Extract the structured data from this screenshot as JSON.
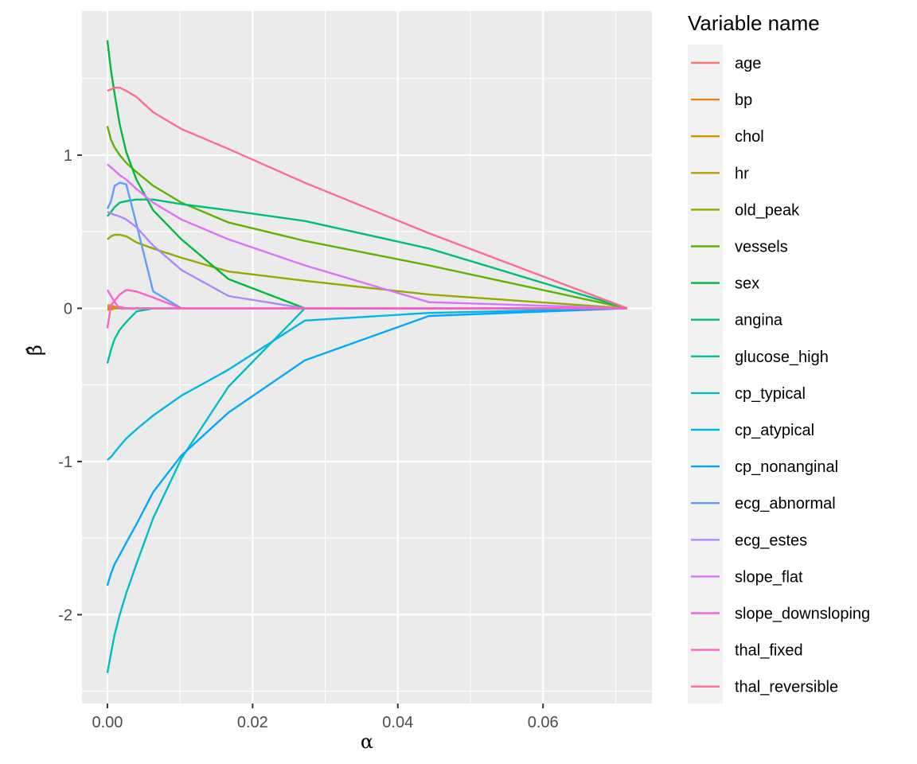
{
  "chart_data": {
    "type": "line",
    "title": "",
    "xlabel": "α",
    "ylabel": "β̂",
    "xlim": [
      -0.0035,
      0.075
    ],
    "ylim": [
      -2.58,
      1.94
    ],
    "x_ticks": [
      0.0,
      0.02,
      0.04,
      0.06
    ],
    "x_tick_labels": [
      "0.00",
      "0.02",
      "0.04",
      "0.06"
    ],
    "y_ticks": [
      -2,
      -1,
      0,
      1
    ],
    "y_tick_labels": [
      "-2",
      "-1",
      "0",
      "1"
    ],
    "grid": true,
    "legend": {
      "title": "Variable name",
      "placement": "right"
    },
    "x": [
      0.0,
      0.0005,
      0.001,
      0.0017,
      0.0026,
      0.004,
      0.0063,
      0.0102,
      0.0167,
      0.0272,
      0.0443,
      0.0716
    ],
    "series": [
      {
        "name": "age",
        "color": "#F8766D",
        "values": [
          0.01,
          0.01,
          0.01,
          0.01,
          0.0,
          0.0,
          0.0,
          0.0,
          0.0,
          0.0,
          0.0,
          0.0
        ]
      },
      {
        "name": "bp",
        "color": "#E7861B",
        "values": [
          0.02,
          0.02,
          0.01,
          0.0,
          0.0,
          0.0,
          0.0,
          0.0,
          0.0,
          0.0,
          0.0,
          0.0
        ]
      },
      {
        "name": "chol",
        "color": "#D39200",
        "values": [
          0.0,
          0.0,
          0.0,
          0.0,
          0.0,
          0.0,
          0.0,
          0.0,
          0.0,
          0.0,
          0.0,
          0.0
        ]
      },
      {
        "name": "hr",
        "color": "#B89E00",
        "values": [
          -0.01,
          -0.01,
          0.0,
          0.0,
          0.0,
          0.0,
          0.0,
          0.0,
          0.0,
          0.0,
          0.0,
          0.0
        ]
      },
      {
        "name": "old_peak",
        "color": "#93AA00",
        "values": [
          0.45,
          0.47,
          0.48,
          0.48,
          0.47,
          0.43,
          0.39,
          0.33,
          0.24,
          0.18,
          0.09,
          0.0
        ]
      },
      {
        "name": "vessels",
        "color": "#5EB300",
        "values": [
          1.19,
          1.1,
          1.05,
          1.0,
          0.95,
          0.89,
          0.8,
          0.69,
          0.56,
          0.44,
          0.28,
          0.0
        ]
      },
      {
        "name": "sex",
        "color": "#00BA38",
        "values": [
          1.75,
          1.55,
          1.4,
          1.2,
          1.02,
          0.84,
          0.64,
          0.45,
          0.19,
          0.0,
          0.0,
          0.0
        ]
      },
      {
        "name": "angina",
        "color": "#00BF74",
        "values": [
          0.6,
          0.63,
          0.66,
          0.69,
          0.7,
          0.71,
          0.71,
          0.68,
          0.64,
          0.57,
          0.39,
          0.0
        ]
      },
      {
        "name": "glucose_high",
        "color": "#00C19F",
        "values": [
          -0.36,
          -0.27,
          -0.2,
          -0.14,
          -0.09,
          -0.02,
          0.0,
          0.0,
          0.0,
          0.0,
          0.0,
          0.0
        ]
      },
      {
        "name": "cp_typical",
        "color": "#00BFC4",
        "values": [
          -2.38,
          -2.25,
          -2.13,
          -2.0,
          -1.86,
          -1.67,
          -1.37,
          -0.98,
          -0.51,
          0.0,
          0.0,
          0.0
        ]
      },
      {
        "name": "cp_atypical",
        "color": "#00B8E7",
        "values": [
          -0.99,
          -0.97,
          -0.94,
          -0.9,
          -0.85,
          -0.79,
          -0.7,
          -0.57,
          -0.4,
          -0.08,
          -0.03,
          0.0
        ]
      },
      {
        "name": "cp_nonanginal",
        "color": "#00A9FF",
        "values": [
          -1.81,
          -1.73,
          -1.67,
          -1.61,
          -1.53,
          -1.41,
          -1.2,
          -0.96,
          -0.68,
          -0.34,
          -0.05,
          0.0
        ]
      },
      {
        "name": "ecg_abnormal",
        "color": "#619CFF",
        "values": [
          0.65,
          0.7,
          0.8,
          0.82,
          0.81,
          0.55,
          0.11,
          0.0,
          0.0,
          0.0,
          0.0,
          0.0
        ]
      },
      {
        "name": "ecg_estes",
        "color": "#AE87FF",
        "values": [
          0.63,
          0.62,
          0.61,
          0.6,
          0.58,
          0.53,
          0.41,
          0.25,
          0.08,
          0.0,
          0.0,
          0.0
        ]
      },
      {
        "name": "slope_flat",
        "color": "#DB72FB",
        "values": [
          0.94,
          0.92,
          0.9,
          0.87,
          0.84,
          0.78,
          0.69,
          0.58,
          0.45,
          0.28,
          0.04,
          0.0
        ]
      },
      {
        "name": "slope_downsloping",
        "color": "#F564E3",
        "values": [
          0.12,
          0.08,
          0.04,
          0.0,
          0.0,
          0.0,
          0.0,
          0.0,
          0.0,
          0.0,
          0.0,
          0.0
        ]
      },
      {
        "name": "thal_fixed",
        "color": "#FF61C3",
        "values": [
          -0.13,
          0.02,
          0.05,
          0.09,
          0.12,
          0.11,
          0.07,
          0.0,
          0.0,
          0.0,
          0.0,
          0.0
        ]
      },
      {
        "name": "thal_reversible",
        "color": "#FF6C91",
        "values": [
          1.42,
          1.43,
          1.44,
          1.44,
          1.42,
          1.38,
          1.28,
          1.17,
          1.04,
          0.82,
          0.49,
          0.0
        ]
      }
    ]
  }
}
